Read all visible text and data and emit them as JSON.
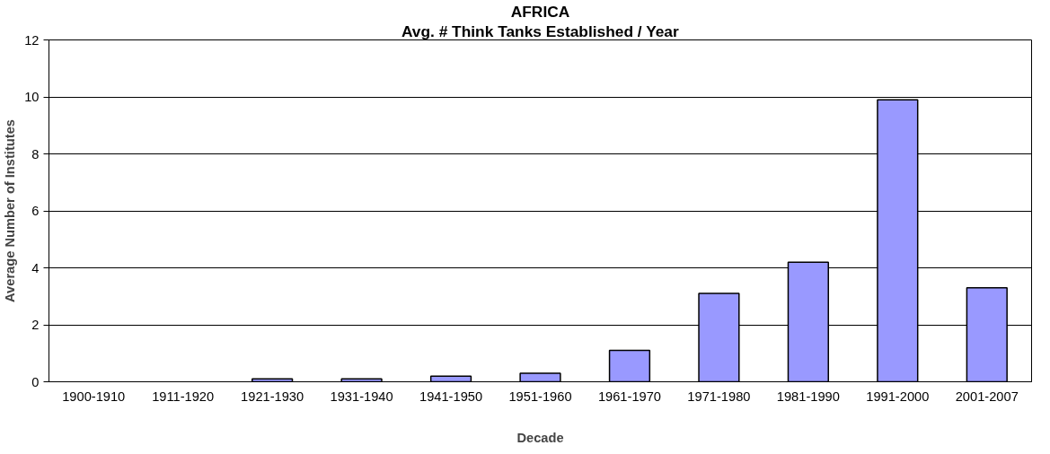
{
  "chart_data": {
    "type": "bar",
    "title": "AFRICA",
    "subtitle": "Avg. # Think Tanks Established / Year",
    "xlabel": "Decade",
    "ylabel": "Average Number of Institutes",
    "categories": [
      "1900-1910",
      "1911-1920",
      "1921-1930",
      "1931-1940",
      "1941-1950",
      "1951-1960",
      "1961-1970",
      "1971-1980",
      "1981-1990",
      "1991-2000",
      "2001-2007"
    ],
    "values": [
      0,
      0,
      0.1,
      0.1,
      0.2,
      0.3,
      1.1,
      3.1,
      4.2,
      9.9,
      3.3
    ],
    "color": "#9999ff",
    "ylim": [
      0,
      12
    ],
    "yticks": [
      0,
      2,
      4,
      6,
      8,
      10,
      12
    ],
    "grid": "y"
  }
}
